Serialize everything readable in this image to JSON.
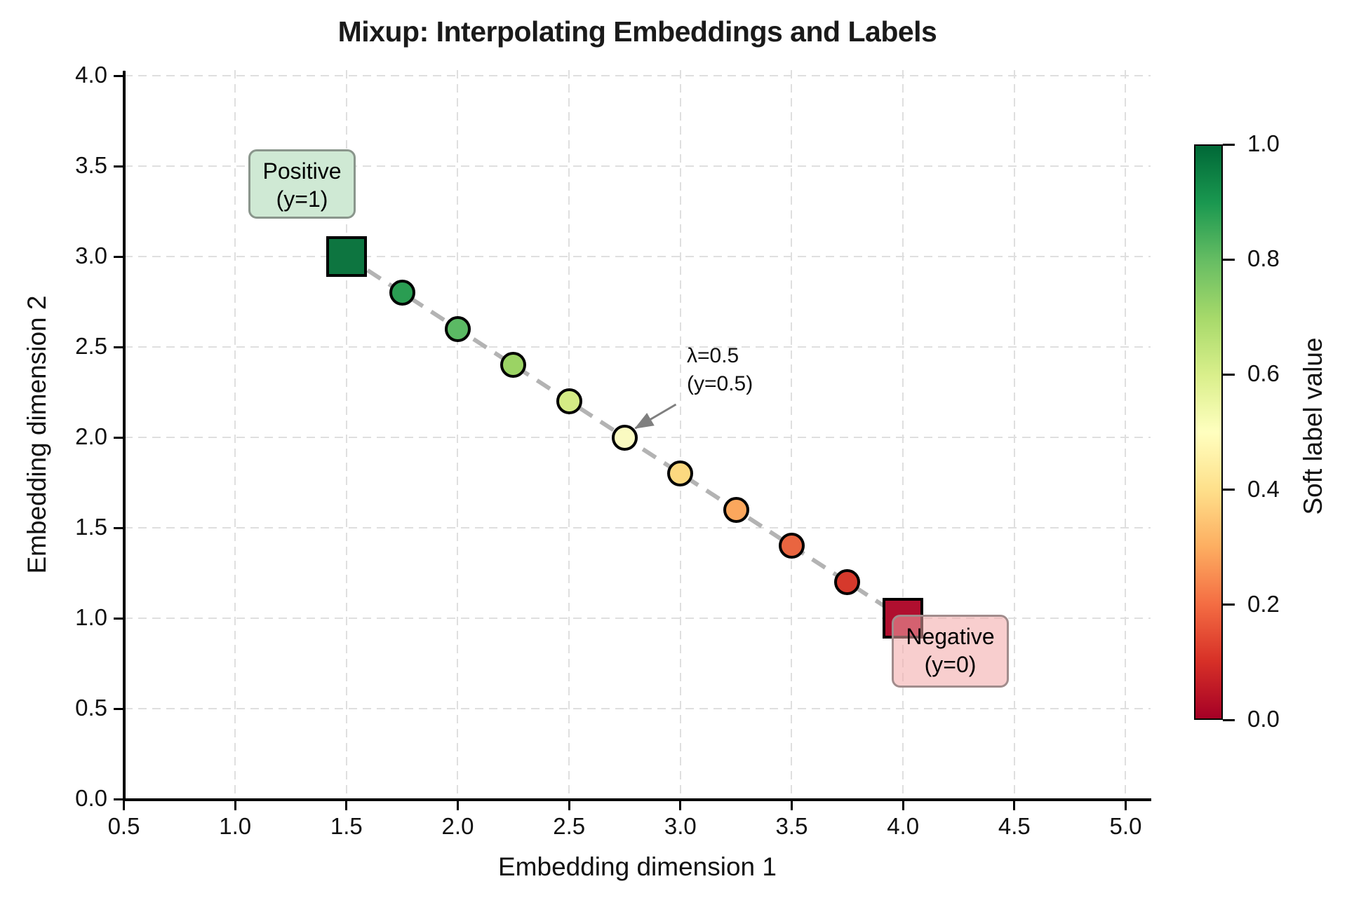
{
  "title": "Mixup: Interpolating Embeddings and Labels",
  "annotations": {
    "positive_box": {
      "line1": "Positive",
      "line2": "(y=1)"
    },
    "negative_box": {
      "line1": "Negative",
      "line2": "(y=0)"
    },
    "lambda_annotation": {
      "line1": "λ=0.5",
      "line2": "(y=0.5)",
      "target": [
        2.75,
        2.0
      ]
    }
  },
  "colorbar": {
    "label": "Soft label value",
    "tick_labels": [
      "1.0",
      "0.8",
      "0.6",
      "0.4",
      "0.2",
      "0.0"
    ],
    "colormap": "RdYlGn",
    "gradient_stops_bottom_to_top": [
      "#a50026",
      "#d73027",
      "#f46d43",
      "#fdae61",
      "#fee08b",
      "#ffffbf",
      "#d9ef8b",
      "#a6d96a",
      "#66bd63",
      "#1a9850",
      "#006837"
    ]
  },
  "chart_data": {
    "type": "scatter",
    "title": "Mixup: Interpolating Embeddings and Labels",
    "xlabel": "Embedding dimension 1",
    "ylabel": "Embedding dimension 2",
    "xlim": [
      0.5,
      5.0
    ],
    "ylim": [
      0.0,
      4.0
    ],
    "x_ticks": [
      "0.5",
      "1.0",
      "1.5",
      "2.0",
      "2.5",
      "3.0",
      "3.5",
      "4.0",
      "4.5",
      "5.0"
    ],
    "y_ticks": [
      "0.0",
      "0.5",
      "1.0",
      "1.5",
      "2.0",
      "2.5",
      "3.0",
      "3.5",
      "4.0"
    ],
    "grid": true,
    "legend": "none",
    "colormap": "RdYlGn",
    "connector_line": {
      "from": [
        1.5,
        3.0
      ],
      "to": [
        4.0,
        1.0
      ],
      "color": "#b3b3b3",
      "style": "dashed"
    },
    "points": [
      {
        "x": 1.5,
        "y": 3.0,
        "soft_label": 1.0,
        "marker": "square",
        "color": "#0d7540",
        "role": "positive-anchor"
      },
      {
        "x": 1.75,
        "y": 2.8,
        "soft_label": 0.9,
        "marker": "circle",
        "color": "#2a9d52",
        "role": "mixup"
      },
      {
        "x": 2.0,
        "y": 2.6,
        "soft_label": 0.8,
        "marker": "circle",
        "color": "#5bba64",
        "role": "mixup"
      },
      {
        "x": 2.25,
        "y": 2.4,
        "soft_label": 0.7,
        "marker": "circle",
        "color": "#9bd364",
        "role": "mixup"
      },
      {
        "x": 2.5,
        "y": 2.2,
        "soft_label": 0.6,
        "marker": "circle",
        "color": "#d4eb85",
        "role": "mixup"
      },
      {
        "x": 2.75,
        "y": 2.0,
        "soft_label": 0.5,
        "marker": "circle",
        "color": "#fafac1",
        "role": "mixup"
      },
      {
        "x": 3.0,
        "y": 1.8,
        "soft_label": 0.4,
        "marker": "circle",
        "color": "#fcd980",
        "role": "mixup"
      },
      {
        "x": 3.25,
        "y": 1.6,
        "soft_label": 0.3,
        "marker": "circle",
        "color": "#fba75d",
        "role": "mixup"
      },
      {
        "x": 3.5,
        "y": 1.4,
        "soft_label": 0.2,
        "marker": "circle",
        "color": "#e96540",
        "role": "mixup"
      },
      {
        "x": 3.75,
        "y": 1.2,
        "soft_label": 0.1,
        "marker": "circle",
        "color": "#d6392c",
        "role": "mixup"
      },
      {
        "x": 4.0,
        "y": 1.0,
        "soft_label": 0.0,
        "marker": "square",
        "color": "#b00f2f",
        "role": "negative-anchor"
      }
    ]
  }
}
